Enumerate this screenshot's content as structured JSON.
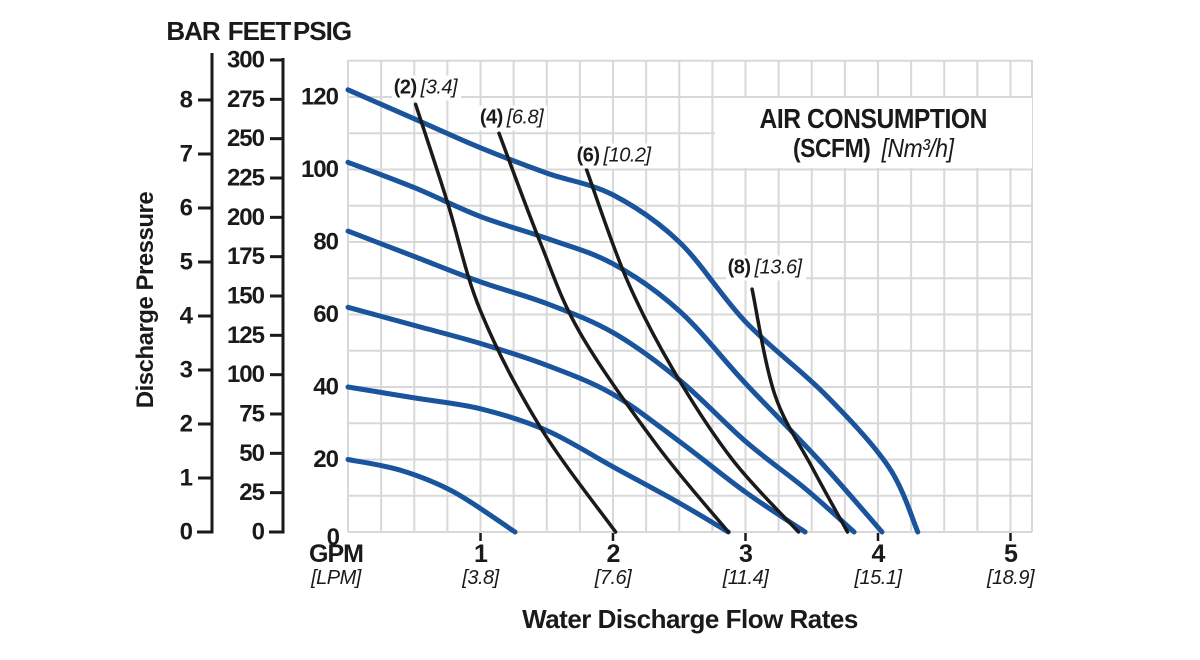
{
  "colors": {
    "curve_blue": "#19549c",
    "air_line_black": "#1a1a1a",
    "grid_gray": "#d8d8d8",
    "text_black": "#1a1a1a",
    "background": "#ffffff"
  },
  "chart_data": {
    "type": "line",
    "title": "AIR CONSUMPTION",
    "subtitle_bold": "(SCFM)",
    "subtitle_italic": "[Nm³/h]",
    "xlabel": "Water Discharge Flow Rates",
    "ylabel": "Discharge Pressure",
    "grid": {
      "gpm_step": 0.25,
      "psig_step": 10,
      "visible": true
    },
    "axis_ranges": {
      "gpm": [
        0,
        5.16
      ],
      "psig": [
        0,
        130
      ]
    },
    "x_axis": {
      "primary_unit": "GPM",
      "secondary_unit": "[LPM]",
      "zero_label": "0",
      "ticks": [
        {
          "gpm": 1,
          "label": "1",
          "lpm_label": "[3.8]"
        },
        {
          "gpm": 2,
          "label": "2",
          "lpm_label": "[7.6]"
        },
        {
          "gpm": 3,
          "label": "3",
          "lpm_label": "[11.4]"
        },
        {
          "gpm": 4,
          "label": "4",
          "lpm_label": "[15.1]"
        },
        {
          "gpm": 5,
          "label": "5",
          "lpm_label": "[18.9]"
        }
      ]
    },
    "y_axis_scales": [
      {
        "name": "BAR",
        "ticks": [
          0,
          1,
          2,
          3,
          4,
          5,
          6,
          7,
          8
        ]
      },
      {
        "name": "FEET",
        "ticks": [
          0,
          25,
          50,
          75,
          100,
          125,
          150,
          175,
          200,
          225,
          250,
          275,
          300
        ]
      },
      {
        "name": "PSIG",
        "ticks": [
          0,
          20,
          40,
          60,
          80,
          100,
          120
        ]
      }
    ],
    "pump_curves": [
      {
        "name": "curve-120psig",
        "points_gpm_psig": [
          [
            0,
            122
          ],
          [
            0.5,
            114
          ],
          [
            1,
            106
          ],
          [
            1.5,
            99
          ],
          [
            2,
            93
          ],
          [
            2.5,
            80
          ],
          [
            3,
            58
          ],
          [
            3.6,
            38
          ],
          [
            4.08,
            18
          ],
          [
            4.3,
            0
          ]
        ]
      },
      {
        "name": "curve-100psig",
        "points_gpm_psig": [
          [
            0,
            102
          ],
          [
            0.5,
            95
          ],
          [
            1,
            87
          ],
          [
            1.5,
            81
          ],
          [
            2,
            74
          ],
          [
            2.5,
            61
          ],
          [
            3,
            41
          ],
          [
            3.55,
            20
          ],
          [
            4.03,
            0
          ]
        ]
      },
      {
        "name": "curve-80psig",
        "points_gpm_psig": [
          [
            0,
            83
          ],
          [
            0.5,
            76
          ],
          [
            1,
            69
          ],
          [
            1.5,
            63
          ],
          [
            2,
            55
          ],
          [
            2.5,
            42
          ],
          [
            3,
            25
          ],
          [
            3.45,
            12
          ],
          [
            3.82,
            0
          ]
        ]
      },
      {
        "name": "curve-60psig",
        "points_gpm_psig": [
          [
            0,
            62
          ],
          [
            0.5,
            57
          ],
          [
            1,
            52
          ],
          [
            1.5,
            46
          ],
          [
            2,
            38
          ],
          [
            2.5,
            25
          ],
          [
            3,
            11
          ],
          [
            3.45,
            0
          ]
        ]
      },
      {
        "name": "curve-40psig",
        "points_gpm_psig": [
          [
            0,
            40
          ],
          [
            0.5,
            37
          ],
          [
            1,
            34
          ],
          [
            1.5,
            28
          ],
          [
            2,
            18
          ],
          [
            2.5,
            8
          ],
          [
            2.87,
            0
          ]
        ]
      },
      {
        "name": "curve-20psig",
        "points_gpm_psig": [
          [
            0,
            20
          ],
          [
            0.4,
            17
          ],
          [
            0.8,
            11
          ],
          [
            1.26,
            0
          ]
        ]
      }
    ],
    "air_consumption_lines": [
      {
        "scfm_label": "(2)",
        "nm3h_label": "[3.4]",
        "label_pos_gpm_psig": [
          0.33,
          122.5
        ],
        "points_gpm_psig": [
          [
            0.51,
            118
          ],
          [
            0.75,
            91
          ],
          [
            1.0,
            61
          ],
          [
            1.45,
            29
          ],
          [
            2.02,
            0
          ]
        ]
      },
      {
        "scfm_label": "(4)",
        "nm3h_label": "[6.8]",
        "label_pos_gpm_psig": [
          0.98,
          114.2
        ],
        "points_gpm_psig": [
          [
            1.14,
            110
          ],
          [
            1.45,
            80
          ],
          [
            1.75,
            55
          ],
          [
            2.33,
            24
          ],
          [
            2.87,
            0
          ]
        ]
      },
      {
        "scfm_label": "(6)",
        "nm3h_label": "[10.2]",
        "label_pos_gpm_psig": [
          1.71,
          103.7
        ],
        "points_gpm_psig": [
          [
            1.8,
            100
          ],
          [
            2.1,
            70
          ],
          [
            2.45,
            45
          ],
          [
            2.9,
            20
          ],
          [
            3.4,
            0
          ]
        ]
      },
      {
        "scfm_label": "(8)",
        "nm3h_label": "[13.6]",
        "label_pos_gpm_psig": [
          2.85,
          72.8
        ],
        "points_gpm_psig": [
          [
            3.05,
            67
          ],
          [
            3.22,
            38
          ],
          [
            3.5,
            18
          ],
          [
            3.77,
            0
          ]
        ]
      }
    ]
  }
}
